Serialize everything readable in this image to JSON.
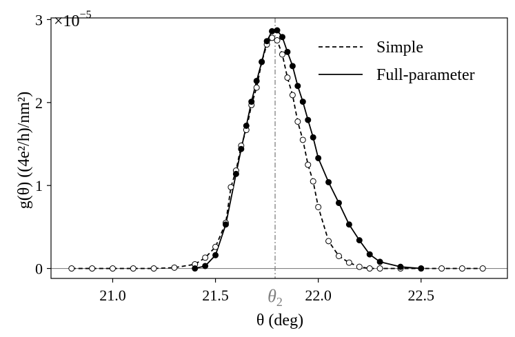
{
  "chart_data": {
    "type": "line",
    "xlabel": "θ (deg)",
    "ylabel": "g(θ) ((4e²/h)/nm²)",
    "y_multiplier": "×10",
    "y_multiplier_exponent": "−5",
    "xlim": [
      20.7,
      22.92
    ],
    "ylim": [
      -0.12,
      3.02
    ],
    "x_ticks": [
      21.0,
      21.5,
      22.0,
      22.5
    ],
    "x_tick_labels": [
      "21.0",
      "21.5",
      "22.0",
      "22.5"
    ],
    "y_ticks": [
      0,
      1,
      2,
      3
    ],
    "y_tick_labels": [
      "0",
      "1",
      "2",
      "3"
    ],
    "vline": {
      "x": 21.79,
      "label": "θ",
      "label_sub": "2",
      "color": "#808080"
    },
    "hline": {
      "y": 0,
      "color": "#808080"
    },
    "legend_position": "top-right",
    "grid": false,
    "series": [
      {
        "name": "Simple",
        "style": "dashed",
        "marker": "open-circle",
        "x": [
          20.8,
          20.9,
          21.0,
          21.1,
          21.2,
          21.3,
          21.4,
          21.45,
          21.5,
          21.55,
          21.575,
          21.6,
          21.625,
          21.65,
          21.675,
          21.7,
          21.725,
          21.75,
          21.775,
          21.8,
          21.825,
          21.85,
          21.875,
          21.9,
          21.925,
          21.95,
          21.975,
          22.0,
          22.05,
          22.1,
          22.15,
          22.2,
          22.25,
          22.3,
          22.4,
          22.5,
          22.6,
          22.7,
          22.8
        ],
        "y": [
          0,
          0,
          0,
          0,
          0,
          0.01,
          0.05,
          0.13,
          0.26,
          0.55,
          0.98,
          1.18,
          1.48,
          1.67,
          1.97,
          2.18,
          2.49,
          2.7,
          2.78,
          2.75,
          2.58,
          2.3,
          2.09,
          1.77,
          1.55,
          1.25,
          1.05,
          0.74,
          0.33,
          0.15,
          0.07,
          0.02,
          0,
          0,
          0,
          0,
          0,
          0,
          0
        ]
      },
      {
        "name": "Full-parameter",
        "style": "solid",
        "marker": "filled-circle",
        "x": [
          21.4,
          21.45,
          21.5,
          21.55,
          21.6,
          21.625,
          21.65,
          21.675,
          21.7,
          21.725,
          21.75,
          21.775,
          21.8,
          21.825,
          21.85,
          21.875,
          21.9,
          21.925,
          21.95,
          21.975,
          22.0,
          22.05,
          22.1,
          22.15,
          22.2,
          22.25,
          22.3,
          22.4,
          22.5
        ],
        "y": [
          0,
          0.03,
          0.16,
          0.53,
          1.14,
          1.44,
          1.72,
          2.01,
          2.26,
          2.49,
          2.74,
          2.86,
          2.87,
          2.79,
          2.61,
          2.44,
          2.2,
          2.01,
          1.79,
          1.58,
          1.33,
          1.04,
          0.79,
          0.53,
          0.34,
          0.17,
          0.08,
          0.02,
          0
        ]
      }
    ]
  }
}
